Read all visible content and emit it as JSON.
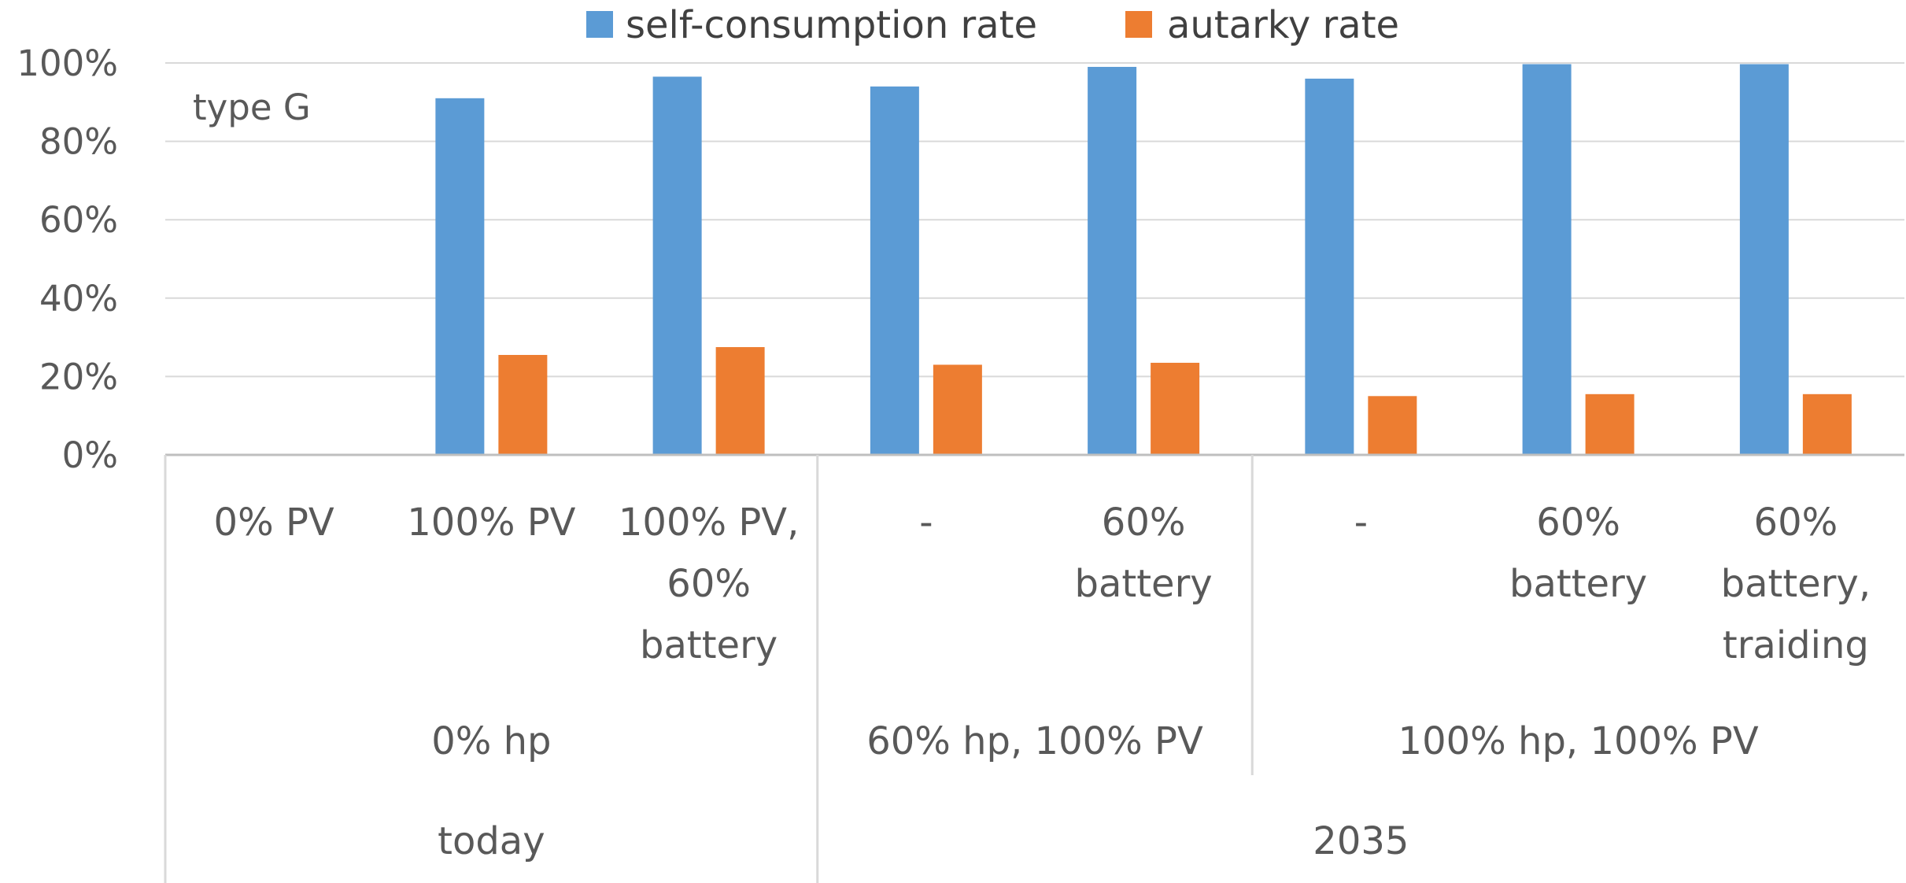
{
  "chart_data": {
    "type": "bar",
    "title": "",
    "annotation": "type G",
    "xlabel": "",
    "ylabel": "",
    "ylim": [
      0,
      100
    ],
    "yticks": [
      0,
      20,
      40,
      60,
      80,
      100
    ],
    "ytick_labels": [
      "0%",
      "20%",
      "40%",
      "60%",
      "80%",
      "100%"
    ],
    "grid": true,
    "legend_position": "top-center",
    "colors": {
      "self_consumption": "#5b9bd5",
      "autarky": "#ed7d31"
    },
    "categories": [
      {
        "lines": [
          "0% PV"
        ]
      },
      {
        "lines": [
          "100% PV"
        ]
      },
      {
        "lines": [
          "100% PV,",
          "60%",
          "battery"
        ]
      },
      {
        "lines": [
          "-"
        ]
      },
      {
        "lines": [
          "60%",
          "battery"
        ]
      },
      {
        "lines": [
          "-"
        ]
      },
      {
        "lines": [
          "60%",
          "battery"
        ]
      },
      {
        "lines": [
          "60%",
          "battery,",
          "traiding"
        ]
      }
    ],
    "group_level_1": [
      {
        "label": "0% hp",
        "start": 0,
        "span": 3
      },
      {
        "label": "60% hp, 100% PV",
        "start": 3,
        "span": 2
      },
      {
        "label": "100% hp, 100% PV",
        "start": 5,
        "span": 3
      }
    ],
    "group_level_2": [
      {
        "label": "today",
        "start": 0,
        "span": 3
      },
      {
        "label": "2035",
        "start": 3,
        "span": 5
      }
    ],
    "series": [
      {
        "name": "self-consumption rate",
        "color_key": "self_consumption",
        "values": [
          0,
          91,
          96.5,
          94,
          99,
          96,
          99.7,
          99.7
        ]
      },
      {
        "name": "autarky rate",
        "color_key": "autarky",
        "values": [
          0,
          25.5,
          27.5,
          23,
          23.5,
          15,
          15.5,
          15.5
        ]
      }
    ]
  }
}
